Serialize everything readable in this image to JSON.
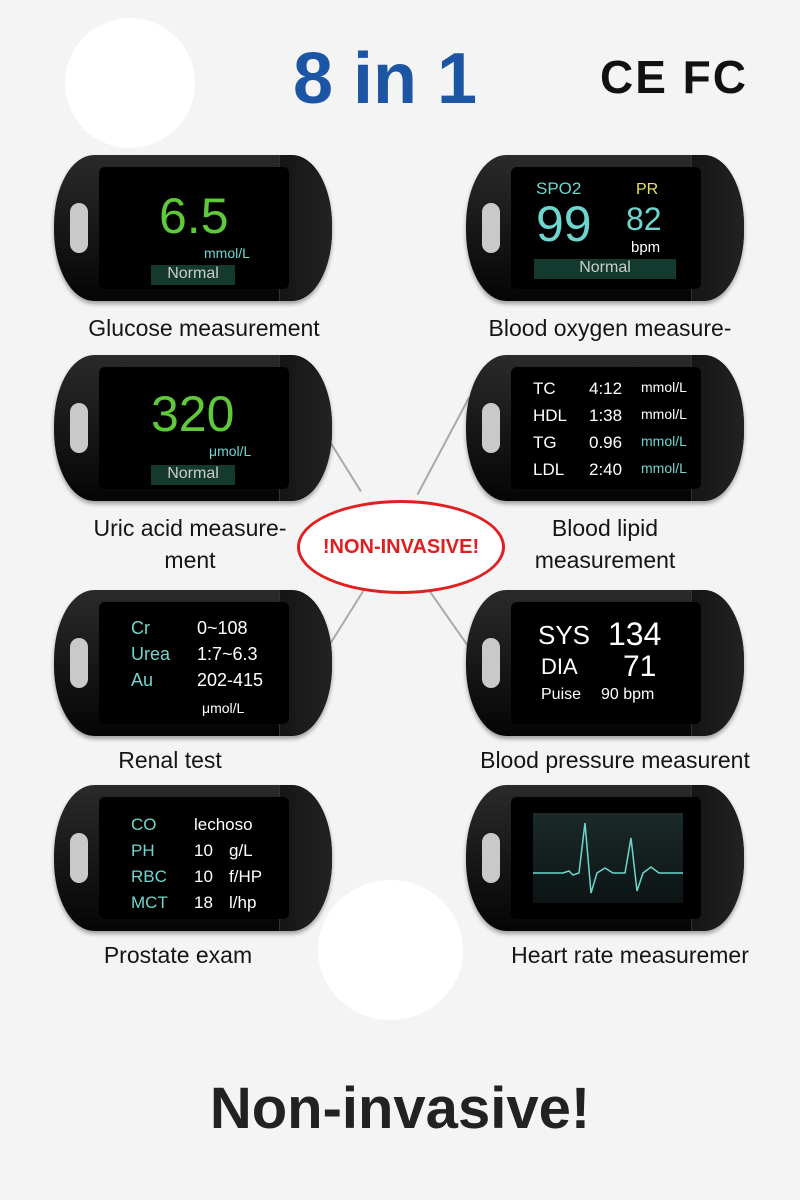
{
  "header": {
    "title": "8 in 1",
    "certifications": "CE FC",
    "brand_color": "#1c55a3"
  },
  "devices": {
    "glucose": {
      "value": "6.5",
      "unit": "mmol/L",
      "status": "Normal",
      "label": "Glucose measurement"
    },
    "blood_oxygen": {
      "spo2_label": "SPO2",
      "spo2_value": "99",
      "pr_label": "PR",
      "pr_value": "82",
      "pr_unit": "bpm",
      "status": "Normal",
      "label": "Blood oxygen measure-"
    },
    "uric_acid": {
      "value": "320",
      "unit": "μmol/L",
      "status": "Normal",
      "label_line1": "Uric acid measure-",
      "label_line2": "ment"
    },
    "blood_lipid": {
      "rows": [
        {
          "name": "TC",
          "value": "4:12",
          "unit": "mmol/L"
        },
        {
          "name": "HDL",
          "value": "1:38",
          "unit": "mmol/L"
        },
        {
          "name": "TG",
          "value": "0.96",
          "unit": "mmol/L"
        },
        {
          "name": "LDL",
          "value": "2:40",
          "unit": "mmol/L"
        }
      ],
      "label_line1": "Blood lipid",
      "label_line2": "measurement"
    },
    "renal": {
      "rows": [
        {
          "name": "Cr",
          "value": "0~108"
        },
        {
          "name": "Urea",
          "value": "1:7~6.3"
        },
        {
          "name": "Au",
          "value": "202-415"
        }
      ],
      "unit": "μmol/L",
      "label": "Renal test"
    },
    "blood_pressure": {
      "sys_label": "SYS",
      "sys_value": "134",
      "dia_label": "DIA",
      "dia_value": "71",
      "pulse_label": "Puise",
      "pulse_value": "90 bpm",
      "label": "Blood pressure measurent"
    },
    "prostate": {
      "rows": [
        {
          "name": "CO",
          "value": "lechoso",
          "unit": ""
        },
        {
          "name": "PH",
          "value": "10",
          "unit": "g/L"
        },
        {
          "name": "RBC",
          "value": "10",
          "unit": "f/HP"
        },
        {
          "name": "MCT",
          "value": "18",
          "unit": "l/hp"
        }
      ],
      "label": "Prostate exam"
    },
    "heart_rate": {
      "label": "Heart rate measuremer"
    }
  },
  "badge": {
    "text": "!NON-INVASIVE!",
    "color": "#e02020"
  },
  "footer": {
    "text": "Non-invasive!"
  }
}
